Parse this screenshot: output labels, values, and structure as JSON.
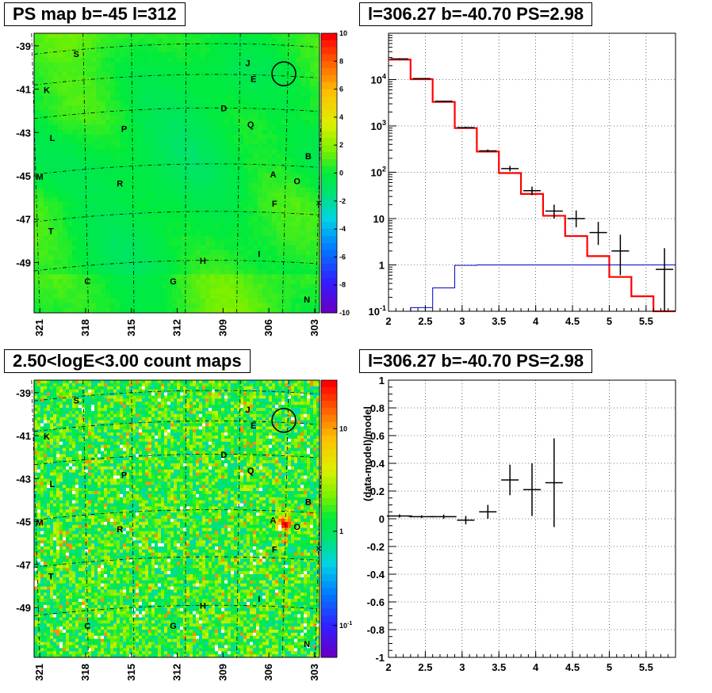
{
  "panels": {
    "tl": {
      "title": "PS map b=-45 l=312"
    },
    "tr": {
      "title": "l=306.27 b=-40.70 PS=2.98"
    },
    "bl": {
      "title": "2.50<logE<3.00 count maps"
    },
    "br": {
      "title": "l=306.27 b=-40.70 PS=2.98"
    }
  },
  "chart_data": [
    {
      "type": "heatmap",
      "title": "PS map b=-45 l=312",
      "x_ticks": [
        "321",
        "318",
        "315",
        "312",
        "309",
        "306",
        "303"
      ],
      "y_ticks": [
        "-39",
        "-41",
        "-43",
        "-45",
        "-47",
        "-49"
      ],
      "colorbar": {
        "min": -10,
        "max": 10,
        "ticks": [
          "10",
          "8",
          "6",
          "4",
          "2",
          "0",
          "-2",
          "-4",
          "-6",
          "-8",
          "-10"
        ]
      },
      "sources": [
        {
          "label": "S",
          "l": 319.3,
          "b": -39.5
        },
        {
          "label": "J",
          "l": 307.1,
          "b": -39.9
        },
        {
          "label": "E",
          "l": 306.7,
          "b": -40.6
        },
        {
          "label": "K",
          "l": 321.4,
          "b": -41.1
        },
        {
          "label": "D",
          "l": 308.8,
          "b": -41.9
        },
        {
          "label": "P",
          "l": 315.9,
          "b": -42.8
        },
        {
          "label": "Q",
          "l": 306.9,
          "b": -42.6
        },
        {
          "label": "L",
          "l": 321.0,
          "b": -43.2
        },
        {
          "label": "B",
          "l": 302.8,
          "b": -44.0
        },
        {
          "label": "M",
          "l": 321.9,
          "b": -44.9
        },
        {
          "label": "A",
          "l": 305.3,
          "b": -44.8
        },
        {
          "label": "O",
          "l": 303.6,
          "b": -45.1
        },
        {
          "label": "R",
          "l": 316.2,
          "b": -45.2
        },
        {
          "label": "F",
          "l": 305.2,
          "b": -46.1
        },
        {
          "label": "T",
          "l": 321.1,
          "b": -47.3
        },
        {
          "label": "I",
          "l": 306.3,
          "b": -48.3
        },
        {
          "label": "H",
          "l": 310.3,
          "b": -48.6
        },
        {
          "label": "C",
          "l": 318.5,
          "b": -49.5
        },
        {
          "label": "G",
          "l": 312.4,
          "b": -49.5
        },
        {
          "label": "N",
          "l": 302.9,
          "b": -50.3
        }
      ]
    },
    {
      "type": "line",
      "title": "l=306.27 b=-40.70 PS=2.98",
      "xlim": [
        2,
        5.9
      ],
      "ylim": [
        0.1,
        100000
      ],
      "yscale": "log",
      "x_ticks": [
        "2",
        "2.5",
        "3",
        "3.5",
        "4",
        "4.5",
        "5",
        "5.5"
      ],
      "y_ticks": [
        "10^-1",
        "1",
        "10",
        "10^2",
        "10^3",
        "10^4"
      ],
      "grid": true,
      "series": [
        {
          "style": "step-red",
          "edges": [
            2,
            2.3,
            2.6,
            2.9,
            3.2,
            3.5,
            3.8,
            4.1,
            4.4,
            4.7,
            5.0,
            5.3,
            5.6,
            5.9
          ],
          "values": [
            27000,
            10200,
            3300,
            900,
            280,
            96,
            34,
            11.5,
            4.2,
            1.55,
            0.55,
            0.21,
            0.08
          ]
        },
        {
          "style": "step-blue",
          "edges": [
            2,
            2.3,
            2.6,
            2.9,
            3.2,
            3.5,
            3.8,
            4.1,
            4.4,
            4.7,
            5.0,
            5.3,
            5.6,
            5.9
          ],
          "values": [
            0.04,
            0.12,
            0.32,
            0.98,
            1.0,
            1.0,
            1.0,
            1.0,
            1.0,
            1.0,
            1.0,
            1.0,
            1.0
          ]
        },
        {
          "style": "points",
          "x": [
            2.15,
            2.45,
            2.75,
            3.05,
            3.35,
            3.65,
            3.95,
            4.25,
            4.55,
            4.85,
            5.15,
            5.75
          ],
          "y": [
            28000,
            10500,
            3400,
            920,
            290,
            120,
            40,
            14.5,
            10,
            5,
            2,
            0.8
          ],
          "ylo": [
            27000,
            10200,
            3300,
            880,
            270,
            105,
            32,
            10,
            6.5,
            2.7,
            0.6,
            0.1
          ],
          "yhi": [
            29000,
            10800,
            3500,
            960,
            310,
            137,
            49,
            20,
            15,
            8.5,
            4.5,
            2.3
          ]
        }
      ]
    },
    {
      "type": "heatmap",
      "title": "2.50<logE<3.00 count maps",
      "x_ticks": [
        "321",
        "318",
        "315",
        "312",
        "309",
        "306",
        "303"
      ],
      "y_ticks": [
        "-39",
        "-41",
        "-43",
        "-45",
        "-47",
        "-49"
      ],
      "colorbar": {
        "scale": "log",
        "ticks": [
          "10",
          "1",
          "10^-1"
        ]
      },
      "bright_source": "A"
    },
    {
      "type": "scatter",
      "title": "l=306.27 b=-40.70 PS=2.98",
      "ylabel": "(data-model)/model",
      "xlim": [
        2,
        5.9
      ],
      "ylim": [
        -1,
        1
      ],
      "x_ticks": [
        "2",
        "2.5",
        "3",
        "3.5",
        "4",
        "4.5",
        "5",
        "5.5"
      ],
      "y_ticks": [
        "1",
        "0.8",
        "0.6",
        "0.4",
        "0.2",
        "0",
        "-0.2",
        "-0.4",
        "-0.6",
        "-0.8",
        "-1"
      ],
      "grid": true,
      "x": [
        2.15,
        2.45,
        2.75,
        3.05,
        3.35,
        3.65,
        3.95,
        4.25
      ],
      "y": [
        0.02,
        0.015,
        0.015,
        -0.01,
        0.05,
        0.28,
        0.21,
        0.26
      ],
      "yerr": [
        0.012,
        0.01,
        0.015,
        0.03,
        0.05,
        0.11,
        0.19,
        0.32
      ]
    }
  ]
}
